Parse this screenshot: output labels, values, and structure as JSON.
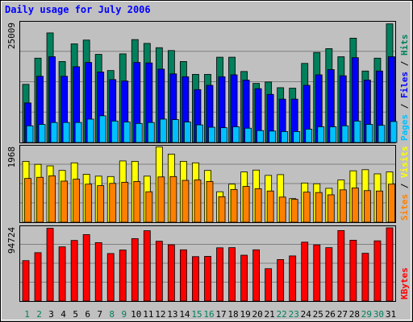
{
  "chart_data": {
    "type": "bar",
    "title": "Daily usage for July 2006",
    "colors": {
      "background": "#c0c0c0",
      "hits": "#00805c",
      "files": "#0000ff",
      "pages": "#00c0ff",
      "visits": "#ffff00",
      "sites": "#ff8000",
      "kbytes": "#ff0000",
      "title": "#0000ff",
      "weekday": "#000000",
      "weekend": "#00805c"
    },
    "x": {
      "labels": [
        "1",
        "2",
        "3",
        "4",
        "5",
        "6",
        "7",
        "8",
        "9",
        "10",
        "11",
        "12",
        "13",
        "14",
        "15",
        "16",
        "17",
        "18",
        "19",
        "20",
        "21",
        "22",
        "23",
        "24",
        "25",
        "26",
        "27",
        "28",
        "29",
        "30",
        "31"
      ],
      "weekend": [
        true,
        true,
        false,
        false,
        false,
        false,
        false,
        true,
        true,
        false,
        false,
        false,
        false,
        false,
        true,
        true,
        false,
        false,
        false,
        false,
        false,
        true,
        true,
        false,
        false,
        false,
        false,
        false,
        true,
        true,
        false
      ]
    },
    "panels": [
      {
        "id": "hits-files-pages",
        "ytick": "25009",
        "ymax": 25009,
        "side_labels": [
          {
            "text": "Pages",
            "color": "#00c0ff"
          },
          {
            "text": " / ",
            "color": "#000000"
          },
          {
            "text": "Files",
            "color": "#0000ff"
          },
          {
            "text": " / ",
            "color": "#000000"
          },
          {
            "text": "Hits",
            "color": "#00805c"
          }
        ],
        "series": [
          {
            "key": "hits",
            "values": [
              12200,
              17700,
              23000,
              17000,
              20700,
              21500,
              18500,
              15100,
              18600,
              21600,
              20800,
              19900,
              19300,
              17000,
              14300,
              14300,
              17900,
              17900,
              14900,
              12400,
              12700,
              11500,
              11400,
              16600,
              18900,
              19700,
              18000,
              21900,
              15000,
              17700,
              24900
            ]
          },
          {
            "key": "files",
            "values": [
              8300,
              13900,
              18000,
              13900,
              15900,
              16800,
              14800,
              13200,
              12900,
              16800,
              16700,
              15400,
              14400,
              13800,
              11100,
              12000,
              13800,
              14200,
              13100,
              11300,
              10100,
              9100,
              9100,
              12000,
              14200,
              15300,
              14000,
              17800,
              13100,
              15000,
              18000
            ]
          },
          {
            "key": "pages",
            "values": [
              3500,
              3800,
              4200,
              4200,
              4200,
              4900,
              5600,
              4500,
              4300,
              4000,
              4200,
              4900,
              4800,
              4300,
              3700,
              3200,
              3100,
              3300,
              3000,
              2500,
              2400,
              2300,
              2300,
              2800,
              3300,
              3300,
              3500,
              4500,
              3800,
              3600,
              4400
            ]
          }
        ]
      },
      {
        "id": "visits-sites",
        "ytick": "1968",
        "ymax": 1968,
        "side_labels": [
          {
            "text": "Sites",
            "color": "#ff8000"
          },
          {
            "text": " / ",
            "color": "#000000"
          },
          {
            "text": "Visits",
            "color": "#ffff00"
          }
        ],
        "series": [
          {
            "key": "visits",
            "values": [
              1600,
              1520,
              1480,
              1360,
              1560,
              1260,
              1210,
              1200,
              1610,
              1600,
              1210,
              1980,
              1790,
              1600,
              1560,
              1360,
              800,
              1000,
              1320,
              1370,
              1230,
              1250,
              620,
              1030,
              1010,
              890,
              1110,
              1350,
              1380,
              1270,
              1320
            ]
          },
          {
            "key": "sites",
            "values": [
              1150,
              1180,
              1220,
              1080,
              1130,
              1000,
              960,
              1020,
              1050,
              1070,
              800,
              1190,
              1200,
              1100,
              1110,
              1070,
              670,
              860,
              940,
              880,
              820,
              660,
              600,
              790,
              780,
              720,
              850,
              900,
              830,
              820,
              1000
            ]
          }
        ]
      },
      {
        "id": "kbytes",
        "ytick": "94724",
        "ymax": 94724,
        "side_labels": [
          {
            "text": "KBytes",
            "color": "#ff0000"
          }
        ],
        "series": [
          {
            "key": "kbytes",
            "values": [
              52300,
              62600,
              94100,
              70100,
              78400,
              86000,
              75600,
              61500,
              66000,
              80800,
              91000,
              77400,
              72800,
              66300,
              57500,
              57800,
              68900,
              69100,
              59300,
              66300,
              41900,
              53700,
              58400,
              76200,
              72700,
              69100,
              91200,
              78700,
              61800,
              77900,
              94700
            ]
          }
        ]
      }
    ]
  }
}
